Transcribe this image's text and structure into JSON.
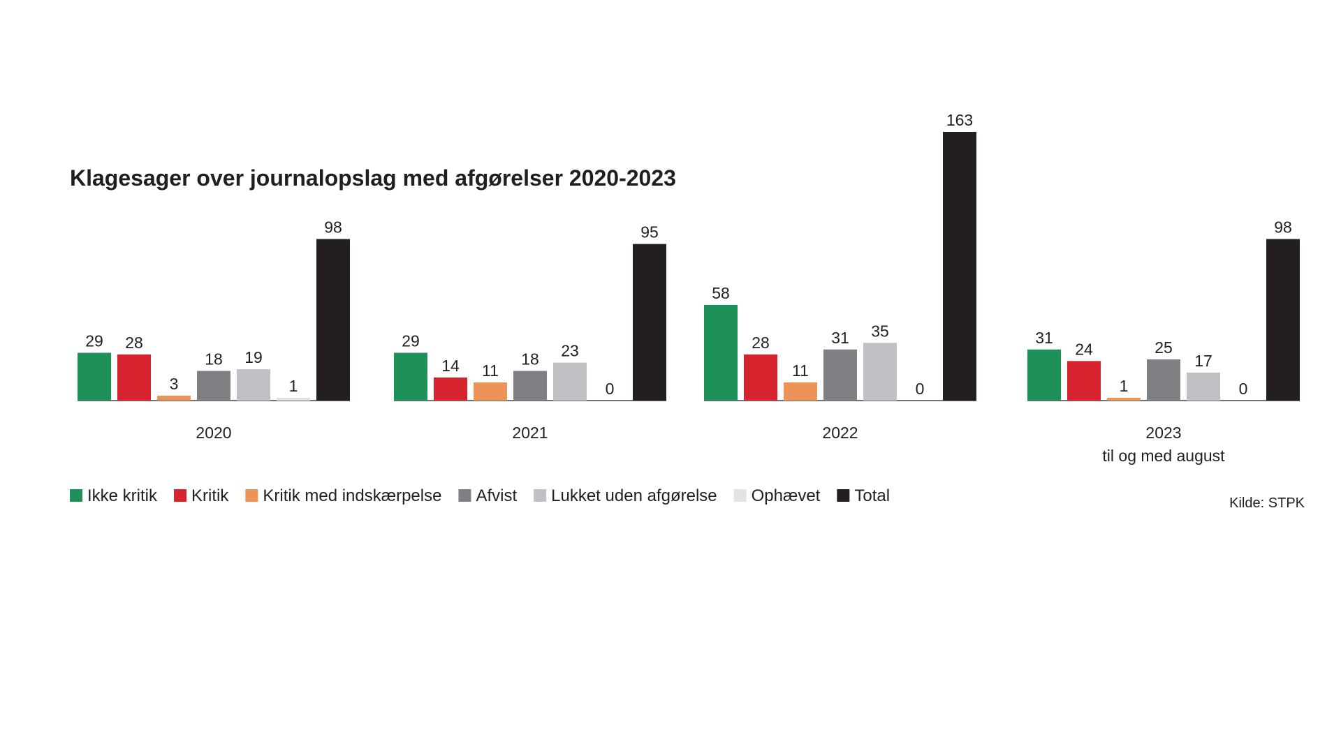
{
  "chart_data": {
    "type": "bar",
    "title": "Klagesager over journalopslag med afgørelser 2020-2023",
    "xlabel": "",
    "ylabel": "",
    "ylim": [
      0,
      163
    ],
    "grid": false,
    "legend_position": "bottom",
    "categories": [
      {
        "label": "2020",
        "sublabel": ""
      },
      {
        "label": "2021",
        "sublabel": ""
      },
      {
        "label": "2022",
        "sublabel": ""
      },
      {
        "label": "2023",
        "sublabel": "til og med august"
      }
    ],
    "series": [
      {
        "name": "Ikke kritik",
        "color": "#1e9158",
        "values": [
          29,
          29,
          58,
          31
        ]
      },
      {
        "name": "Kritik",
        "color": "#d7232d",
        "values": [
          28,
          14,
          28,
          24
        ]
      },
      {
        "name": "Kritik med indskærpelse",
        "color": "#ec9457",
        "values": [
          3,
          11,
          11,
          1
        ]
      },
      {
        "name": "Afvist",
        "color": "#7f8083",
        "values": [
          18,
          18,
          31,
          25
        ]
      },
      {
        "name": "Lukket uden afgørelse",
        "color": "#c0c1c4",
        "values": [
          19,
          23,
          35,
          17
        ]
      },
      {
        "name": "Ophævet",
        "color": "#e3e3e3",
        "values": [
          1,
          0,
          0,
          0
        ]
      },
      {
        "name": "Total",
        "color": "#231f20",
        "values": [
          98,
          95,
          163,
          98
        ]
      }
    ]
  },
  "source": "Kilde: STPK",
  "colors": {
    "baseline": "#444444",
    "text": "#1f1f1f"
  }
}
